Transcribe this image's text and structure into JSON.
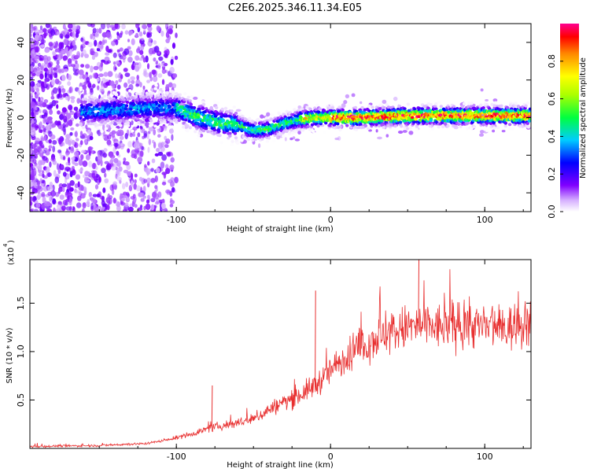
{
  "chart_data": [
    {
      "type": "heatmap",
      "title": "C2E6.2025.346.11.34.E05",
      "xlabel": "Height of straight line (km)",
      "ylabel": "Frequency (Hz)",
      "xlim": [
        -195,
        130
      ],
      "ylim": [
        -50,
        50
      ],
      "xticks": [
        -100,
        0,
        100
      ],
      "yticks": [
        -40,
        -20,
        0,
        20,
        40
      ],
      "colorbar": {
        "label": "Normalized spectral amplitude",
        "range": [
          0,
          1
        ],
        "ticks": [
          "0.0",
          "0.2",
          "0.4",
          "0.6",
          "0.8"
        ]
      },
      "ridge_frequency_hz": {
        "x_km": [
          -160,
          -140,
          -120,
          -100,
          -85,
          -70,
          -60,
          -50,
          -40,
          -30,
          -20,
          -10,
          0,
          20,
          50,
          80,
          110,
          130
        ],
        "freq_hz": [
          3,
          4,
          5,
          5,
          0,
          -3,
          -4,
          -7,
          -6,
          -3,
          -1,
          0,
          0,
          0,
          1,
          1,
          1,
          1
        ]
      }
    },
    {
      "type": "line",
      "xlabel": "Height of straight line (km)",
      "ylabel": "SNR (10 * v/v)",
      "scale_label": "(x10",
      "scale_exponent": "4",
      "xlim": [
        -195,
        130
      ],
      "ylim": [
        0,
        1.95
      ],
      "xticks": [
        -100,
        0,
        100
      ],
      "yticks": [
        0.5,
        1.0,
        1.5
      ],
      "ytick_labels": [
        "0.5",
        "1.0",
        "1.5"
      ],
      "series": [
        {
          "name": "SNR",
          "color": "#e83030",
          "x_km": [
            -195,
            -150,
            -120,
            -105,
            -90,
            -80,
            -75,
            -65,
            -50,
            -40,
            -30,
            -20,
            -10,
            0,
            10,
            20,
            30,
            40,
            50,
            60,
            70,
            80,
            90,
            100,
            110,
            120,
            130
          ],
          "values": [
            0.02,
            0.03,
            0.05,
            0.09,
            0.15,
            0.2,
            0.22,
            0.25,
            0.3,
            0.4,
            0.48,
            0.55,
            0.65,
            0.8,
            0.95,
            1.05,
            1.15,
            1.2,
            1.25,
            1.27,
            1.25,
            1.27,
            1.28,
            1.25,
            1.23,
            1.26,
            1.28
          ],
          "spikes": [
            {
              "x_km": -10,
              "value": 1.63
            },
            {
              "x_km": -77,
              "value": 0.65
            },
            {
              "x_km": 57,
              "value": 1.95
            }
          ]
        }
      ]
    }
  ]
}
